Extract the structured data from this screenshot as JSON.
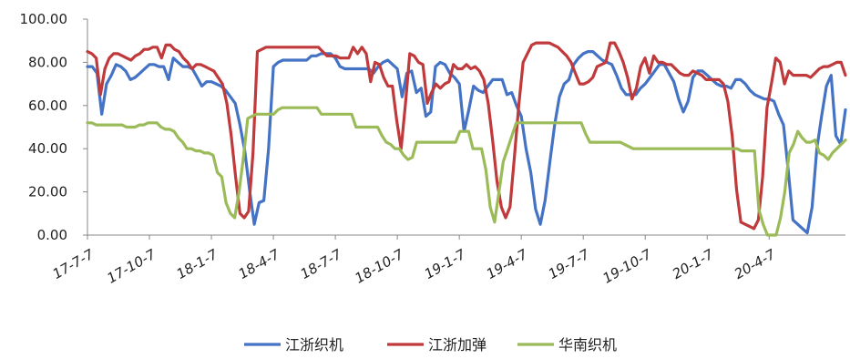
{
  "chart_data": {
    "type": "line",
    "ylim": [
      0,
      100
    ],
    "yticks": [
      "0.00",
      "20.00",
      "40.00",
      "60.00",
      "80.00",
      "100.00"
    ],
    "ytick_values": [
      0,
      20,
      40,
      60,
      80,
      100
    ],
    "xlim": [
      0,
      159
    ],
    "xtick_labels": [
      "17-7-7",
      "17-10-7",
      "18-1-7",
      "18-4-7",
      "18-7-7",
      "18-10-7",
      "19-1-7",
      "19-4-7",
      "19-7-7",
      "19-10-7",
      "20-1-7",
      "20-4-7"
    ],
    "xtick_positions": [
      0,
      13,
      26,
      39,
      52,
      65,
      78,
      91,
      104,
      117,
      130,
      143
    ],
    "grid": false,
    "legend_position": "bottom",
    "series": [
      {
        "name": "江浙织机",
        "color": "#4472C4",
        "values": [
          78,
          78,
          75,
          56,
          70,
          74,
          79,
          78,
          76,
          72,
          73,
          75,
          77,
          79,
          79,
          78,
          78,
          72,
          82,
          80,
          78,
          78,
          77,
          73,
          69,
          71,
          71,
          70,
          69,
          67,
          64,
          61,
          51,
          39,
          21,
          5,
          15,
          16,
          40,
          78,
          80,
          81,
          81,
          81,
          81,
          81,
          81,
          83,
          83,
          84,
          84,
          84,
          82,
          78,
          77,
          77,
          77,
          77,
          77,
          77,
          75,
          78,
          80,
          81,
          79,
          77,
          64,
          75,
          76,
          66,
          68,
          55,
          57,
          78,
          80,
          79,
          75,
          73,
          70,
          48,
          58,
          69,
          67,
          66,
          69,
          72,
          72,
          72,
          65,
          66,
          60,
          55,
          40,
          29,
          12,
          5,
          16,
          34,
          51,
          64,
          70,
          72,
          79,
          82,
          84,
          85,
          85,
          83,
          81,
          80,
          79,
          74,
          68,
          65,
          65,
          65,
          68,
          70,
          73,
          76,
          79,
          79,
          75,
          71,
          63,
          57,
          62,
          73,
          76,
          76,
          74,
          72,
          70,
          69,
          69,
          68,
          72,
          72,
          70,
          67,
          65,
          64,
          63,
          63,
          62,
          56,
          51,
          30,
          7,
          5,
          3,
          1,
          13,
          40,
          55,
          69,
          74,
          46,
          42,
          58
        ]
      },
      {
        "name": "江浙加弹",
        "color": "#C0393B",
        "values": [
          85,
          84,
          82,
          65,
          77,
          82,
          84,
          84,
          83,
          82,
          81,
          83,
          84,
          86,
          86,
          87,
          87,
          82,
          88,
          88,
          86,
          85,
          82,
          80,
          77,
          79,
          79,
          78,
          77,
          76,
          73,
          70,
          61,
          46,
          27,
          10,
          8,
          11,
          38,
          85,
          86,
          87,
          87,
          87,
          87,
          87,
          87,
          87,
          87,
          87,
          87,
          87,
          87,
          87,
          85,
          83,
          83,
          83,
          82,
          82,
          82,
          87,
          84,
          87,
          84,
          71,
          80,
          79,
          73,
          69,
          69,
          53,
          40,
          61,
          84,
          83,
          80,
          79,
          61,
          66,
          70,
          68,
          70,
          71,
          79,
          77,
          77,
          79,
          77,
          78,
          76,
          72,
          61,
          44,
          25,
          13,
          8,
          13,
          36,
          60,
          80,
          84,
          88,
          89,
          89,
          89,
          89,
          88,
          87,
          85,
          83,
          80,
          75,
          70,
          70,
          71,
          73,
          78,
          79,
          80,
          89,
          89,
          85,
          80,
          73,
          63,
          68,
          78,
          82,
          75,
          83,
          80,
          80,
          79,
          79,
          77,
          75,
          74,
          74,
          76,
          75,
          74,
          72,
          72,
          72,
          72,
          70,
          62,
          46,
          21,
          6,
          5,
          4,
          3,
          7,
          27,
          59,
          70,
          82,
          80,
          70,
          76,
          74,
          74,
          74,
          74,
          73,
          75,
          77,
          78,
          78,
          79,
          80,
          80,
          74
        ]
      },
      {
        "name": "华南织机",
        "color": "#9BBB59",
        "values": [
          52,
          52,
          51,
          51,
          51,
          51,
          51,
          51,
          51,
          50,
          50,
          50,
          51,
          51,
          52,
          52,
          52,
          50,
          49,
          49,
          48,
          45,
          43,
          40,
          40,
          39,
          39,
          38,
          38,
          37,
          29,
          27,
          15,
          10,
          8,
          20,
          36,
          54,
          55,
          56,
          56,
          56,
          56,
          56,
          58,
          59,
          59,
          59,
          59,
          59,
          59,
          59,
          59,
          59,
          56,
          56,
          56,
          56,
          56,
          56,
          56,
          56,
          50,
          50,
          50,
          50,
          50,
          50,
          46,
          43,
          42,
          40,
          40,
          37,
          35,
          36,
          43,
          43,
          43,
          43,
          43,
          43,
          43,
          43,
          43,
          43,
          48,
          48,
          48,
          40,
          40,
          40,
          30,
          13,
          6,
          20,
          34,
          40,
          46,
          52,
          52,
          52,
          52,
          52,
          52,
          52,
          52,
          52,
          52,
          52,
          52,
          52,
          52,
          52,
          52,
          47,
          43,
          43,
          43,
          43,
          43,
          43,
          43,
          43,
          42,
          41,
          40,
          40,
          40,
          40,
          40,
          40,
          40,
          40,
          40,
          40,
          40,
          40,
          40,
          40,
          40,
          40,
          40,
          40,
          40,
          40,
          40,
          40,
          40,
          40,
          40,
          39,
          39,
          39,
          39,
          12,
          5,
          0,
          0,
          0,
          8,
          20,
          38,
          42,
          48,
          45,
          43,
          43,
          44,
          38,
          37,
          35,
          38,
          40,
          42,
          44
        ]
      }
    ]
  }
}
